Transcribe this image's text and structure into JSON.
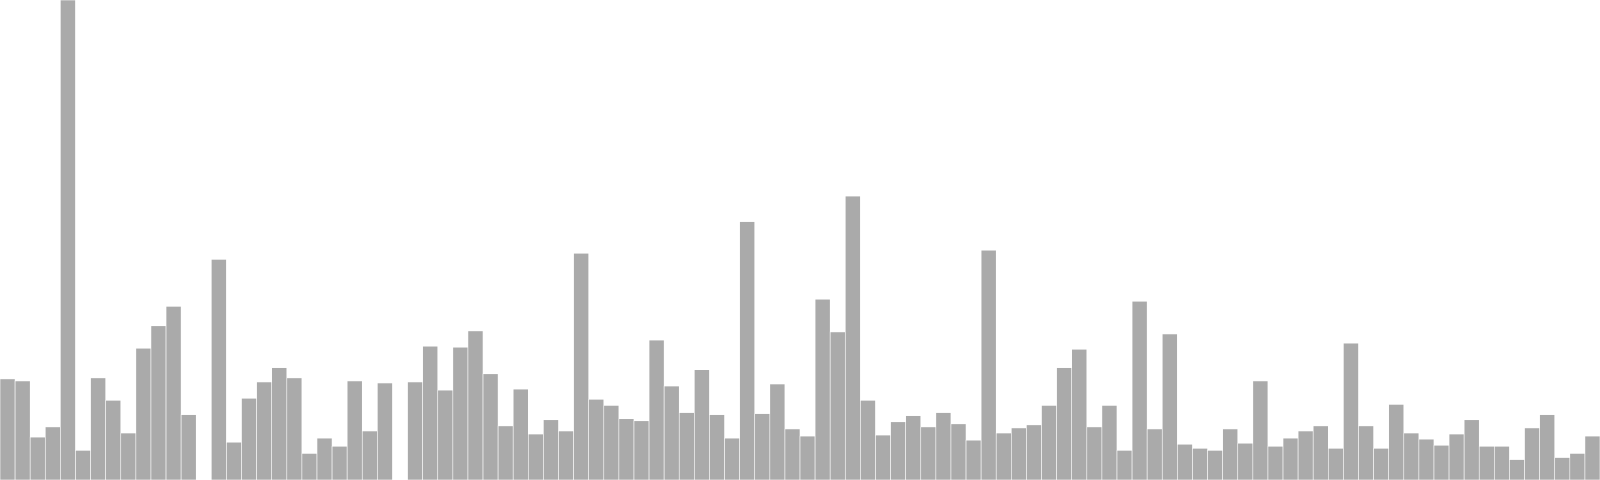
{
  "chart_data": {
    "type": "bar",
    "color": "#aaaaaa",
    "ylim": [
      0,
      470
    ],
    "values": [
      99,
      97,
      42,
      52,
      470,
      29,
      100,
      78,
      46,
      129,
      151,
      170,
      64,
      0,
      216,
      37,
      80,
      96,
      110,
      100,
      26,
      41,
      33,
      97,
      48,
      95,
      0,
      96,
      131,
      88,
      130,
      146,
      104,
      53,
      89,
      45,
      59,
      48,
      222,
      79,
      73,
      60,
      58,
      137,
      92,
      66,
      108,
      64,
      41,
      253,
      65,
      94,
      50,
      43,
      177,
      145,
      278,
      78,
      44,
      57,
      63,
      52,
      66,
      55,
      39,
      225,
      46,
      51,
      54,
      73,
      110,
      128,
      52,
      73,
      29,
      175,
      50,
      143,
      35,
      31,
      29,
      50,
      36,
      97,
      33,
      41,
      48,
      53,
      31,
      134,
      53,
      31,
      74,
      46,
      40,
      34,
      45,
      59,
      33,
      33,
      20,
      51,
      64,
      22,
      26,
      43
    ]
  }
}
